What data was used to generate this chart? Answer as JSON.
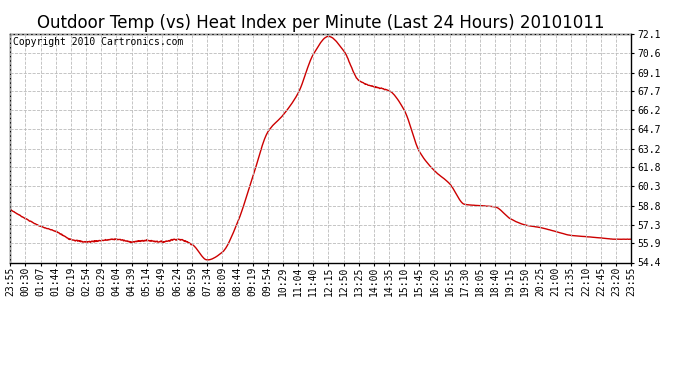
{
  "title": "Outdoor Temp (vs) Heat Index per Minute (Last 24 Hours) 20101011",
  "copyright": "Copyright 2010 Cartronics.com",
  "line_color": "#cc0000",
  "background_color": "#ffffff",
  "grid_color": "#bbbbbb",
  "ylim": [
    54.4,
    72.1
  ],
  "yticks": [
    54.4,
    55.9,
    57.3,
    58.8,
    60.3,
    61.8,
    63.2,
    64.7,
    66.2,
    67.7,
    69.1,
    70.6,
    72.1
  ],
  "xtick_labels": [
    "23:55",
    "00:30",
    "01:07",
    "01:44",
    "02:19",
    "02:54",
    "03:29",
    "04:04",
    "04:39",
    "05:14",
    "05:49",
    "06:24",
    "06:59",
    "07:34",
    "08:09",
    "08:44",
    "09:19",
    "09:54",
    "10:29",
    "11:04",
    "11:40",
    "12:15",
    "12:50",
    "13:25",
    "14:00",
    "14:35",
    "15:10",
    "15:45",
    "16:20",
    "16:55",
    "17:30",
    "18:05",
    "18:40",
    "19:15",
    "19:50",
    "20:25",
    "21:00",
    "21:35",
    "22:10",
    "22:45",
    "23:20",
    "23:55"
  ],
  "title_fontsize": 12,
  "copyright_fontsize": 7,
  "tick_fontsize": 7,
  "line_width": 1.0
}
